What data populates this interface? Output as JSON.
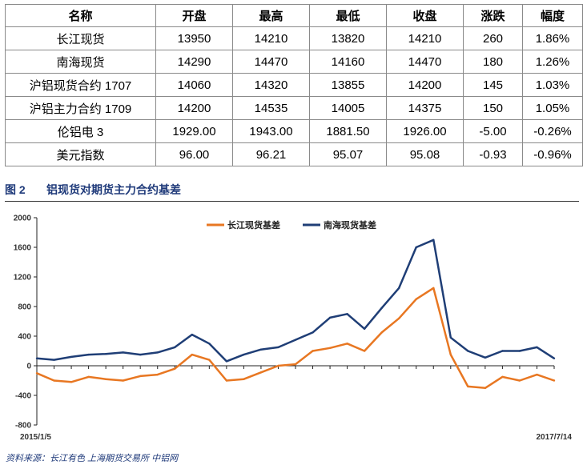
{
  "table": {
    "headers": [
      "名称",
      "开盘",
      "最高",
      "最低",
      "收盘",
      "涨跌",
      "幅度"
    ],
    "rows": [
      [
        "长江现货",
        "13950",
        "14210",
        "13820",
        "14210",
        "260",
        "1.86%"
      ],
      [
        "南海现货",
        "14290",
        "14470",
        "14160",
        "14470",
        "180",
        "1.26%"
      ],
      [
        "沪铝现货合约 1707",
        "14060",
        "14320",
        "13855",
        "14200",
        "145",
        "1.03%"
      ],
      [
        "沪铝主力合约 1709",
        "14200",
        "14535",
        "14005",
        "14375",
        "150",
        "1.05%"
      ],
      [
        "伦铝电 3",
        "1929.00",
        "1943.00",
        "1881.50",
        "1926.00",
        "-5.00",
        "-0.26%"
      ],
      [
        "美元指数",
        "96.00",
        "96.21",
        "95.07",
        "95.08",
        "-0.93",
        "-0.96%"
      ]
    ]
  },
  "figure": {
    "number": "图 2",
    "title": "铝现货对期货主力合约基差"
  },
  "source": "资料来源：长江有色    上海期货交易所    中铝网",
  "chart_data": {
    "type": "line",
    "title": "",
    "xlabel": "",
    "ylabel": "",
    "x_start_label": "2015/1/5",
    "x_end_label": "2017/7/14",
    "ylim": [
      -800,
      2000
    ],
    "yticks": [
      -800,
      -400,
      0,
      400,
      800,
      1200,
      1600,
      2000
    ],
    "grid": false,
    "legend_position": "top-center",
    "x": [
      "2015-01",
      "2015-02",
      "2015-03",
      "2015-04",
      "2015-05",
      "2015-06",
      "2015-07",
      "2015-08",
      "2015-09",
      "2015-10",
      "2015-11",
      "2015-12",
      "2016-01",
      "2016-02",
      "2016-03",
      "2016-04",
      "2016-05",
      "2016-06",
      "2016-07",
      "2016-08",
      "2016-09",
      "2016-10",
      "2016-11",
      "2016-12",
      "2017-01",
      "2017-02",
      "2017-03",
      "2017-04",
      "2017-05",
      "2017-06",
      "2017-07"
    ],
    "series": [
      {
        "name": "长江现货基差",
        "color": "#e87722",
        "values": [
          -100,
          -200,
          -220,
          -150,
          -180,
          -200,
          -140,
          -120,
          -40,
          150,
          80,
          -200,
          -180,
          -90,
          0,
          20,
          200,
          240,
          300,
          200,
          450,
          640,
          900,
          1050,
          150,
          -280,
          -300,
          -150,
          -200,
          -120,
          -200
        ]
      },
      {
        "name": "南海现货基差",
        "color": "#1f3e76",
        "values": [
          100,
          80,
          120,
          150,
          160,
          180,
          150,
          180,
          250,
          420,
          300,
          60,
          150,
          220,
          250,
          350,
          450,
          650,
          700,
          500,
          780,
          1050,
          1600,
          1700,
          380,
          200,
          110,
          200,
          200,
          250,
          100
        ]
      }
    ]
  }
}
